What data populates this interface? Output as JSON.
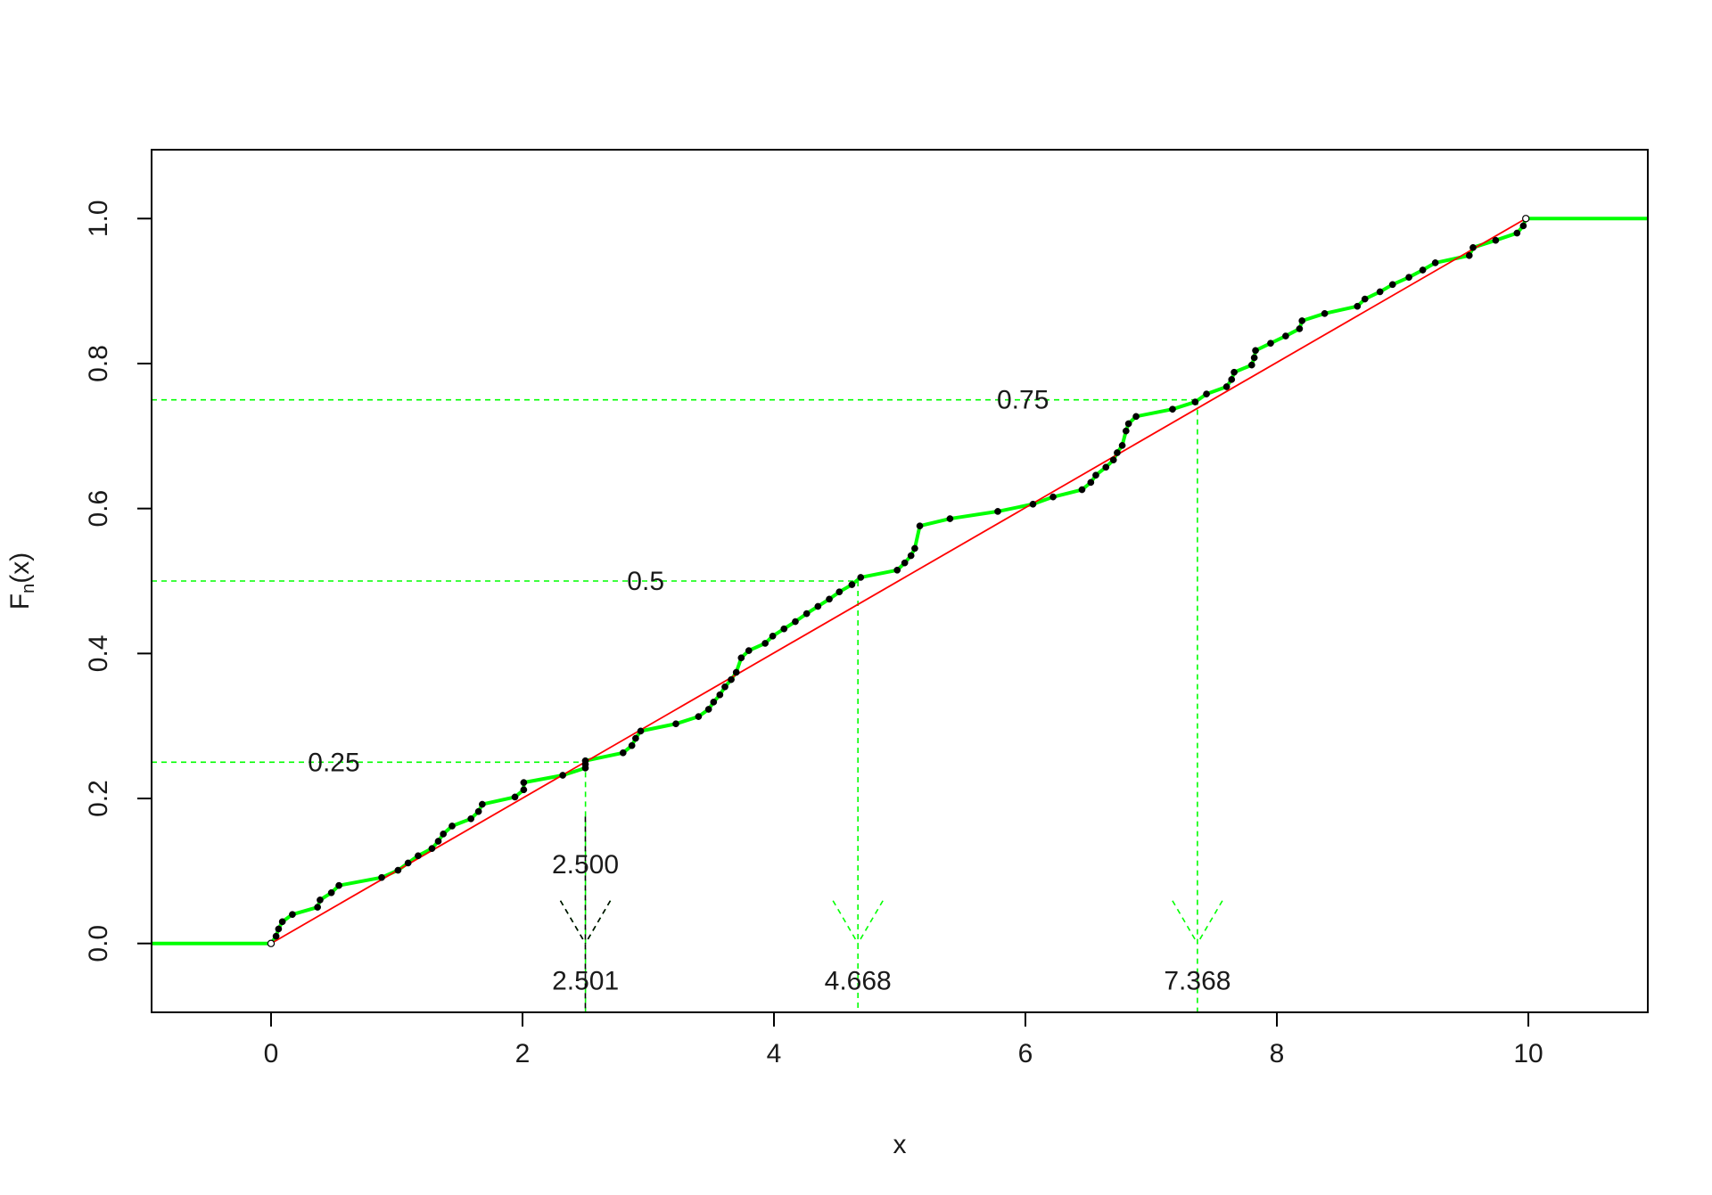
{
  "colors": {
    "ecdf": "#00ff00",
    "uniform_line": "#ff0000",
    "points": "#000000",
    "guide": "#00ff00",
    "guide_alt": "#000000",
    "frame": "#000000"
  },
  "chart_data": {
    "type": "line",
    "title": "",
    "xlabel": "x",
    "ylabel_main": "F",
    "ylabel_sub": "n",
    "ylabel_suffix": "(x)",
    "xlim": [
      -0.95,
      10.95
    ],
    "ylim": [
      -0.095,
      1.095
    ],
    "x_ticks": [
      0,
      2,
      4,
      6,
      8,
      10
    ],
    "x_tick_labels": [
      "0",
      "2",
      "4",
      "6",
      "8",
      "10"
    ],
    "y_ticks": [
      0.0,
      0.2,
      0.4,
      0.6,
      0.8,
      1.0
    ],
    "y_tick_labels": [
      "0.0",
      "0.2",
      "0.4",
      "0.6",
      "0.8",
      "1.0"
    ],
    "grid": false,
    "series": [
      {
        "style": "ecdf-interpolated",
        "x": [
          0.0,
          0.04,
          0.06,
          0.09,
          0.17,
          0.37,
          0.39,
          0.48,
          0.54,
          0.88,
          1.01,
          1.09,
          1.17,
          1.28,
          1.33,
          1.37,
          1.44,
          1.59,
          1.65,
          1.68,
          1.94,
          2.01,
          2.01,
          2.32,
          2.5,
          2.5,
          2.5,
          2.8,
          2.87,
          2.9,
          2.94,
          3.22,
          3.4,
          3.48,
          3.52,
          3.57,
          3.61,
          3.66,
          3.7,
          3.74,
          3.8,
          3.93,
          3.99,
          4.08,
          4.17,
          4.26,
          4.35,
          4.44,
          4.52,
          4.62,
          4.69,
          4.98,
          5.04,
          5.09,
          5.12,
          5.16,
          5.4,
          5.78,
          6.06,
          6.22,
          6.45,
          6.52,
          6.56,
          6.64,
          6.7,
          6.73,
          6.77,
          6.8,
          6.82,
          6.88,
          7.17,
          7.35,
          7.44,
          7.6,
          7.64,
          7.66,
          7.8,
          7.82,
          7.83,
          7.95,
          8.07,
          8.18,
          8.2,
          8.38,
          8.64,
          8.7,
          8.82,
          8.92,
          9.05,
          9.16,
          9.26,
          9.53,
          9.56,
          9.74,
          9.91,
          9.96,
          9.98
        ],
        "y": [
          0.0,
          0.01,
          0.02,
          0.03,
          0.04,
          0.05,
          0.06,
          0.07,
          0.08,
          0.091,
          0.101,
          0.111,
          0.121,
          0.131,
          0.141,
          0.151,
          0.162,
          0.172,
          0.182,
          0.192,
          0.202,
          0.212,
          0.222,
          0.232,
          0.242,
          0.247,
          0.252,
          0.263,
          0.273,
          0.283,
          0.293,
          0.303,
          0.313,
          0.323,
          0.333,
          0.343,
          0.354,
          0.364,
          0.374,
          0.394,
          0.404,
          0.414,
          0.424,
          0.434,
          0.444,
          0.455,
          0.465,
          0.475,
          0.485,
          0.495,
          0.505,
          0.515,
          0.525,
          0.535,
          0.545,
          0.576,
          0.586,
          0.596,
          0.606,
          0.616,
          0.626,
          0.636,
          0.646,
          0.657,
          0.667,
          0.677,
          0.687,
          0.707,
          0.717,
          0.727,
          0.737,
          0.747,
          0.758,
          0.768,
          0.778,
          0.788,
          0.798,
          0.808,
          0.818,
          0.828,
          0.838,
          0.848,
          0.859,
          0.869,
          0.879,
          0.889,
          0.899,
          0.909,
          0.919,
          0.929,
          0.939,
          0.949,
          0.96,
          0.97,
          0.98,
          0.99,
          1.0
        ]
      },
      {
        "style": "ecdf-tails",
        "segments": [
          {
            "x": [
              -0.95,
              0.0
            ],
            "y": [
              0,
              0
            ]
          },
          {
            "x": [
              9.98,
              10.95
            ],
            "y": [
              1,
              1
            ]
          }
        ]
      },
      {
        "style": "reference-line",
        "x": [
          0.0,
          9.98
        ],
        "y": [
          0.0,
          1.0
        ]
      }
    ],
    "quantile_guides": [
      {
        "p": 0.25,
        "label": "0.25",
        "x": 2.501,
        "x_label": "2.501",
        "label_x": 0.5
      },
      {
        "p": 0.5,
        "label": "0.5",
        "x": 4.668,
        "x_label": "4.668",
        "label_x": 2.98
      },
      {
        "p": 0.75,
        "label": "0.75",
        "x": 7.368,
        "x_label": "7.368",
        "label_x": 5.98
      }
    ],
    "reference_marker": {
      "x": 2.5,
      "label": "2.500"
    }
  }
}
